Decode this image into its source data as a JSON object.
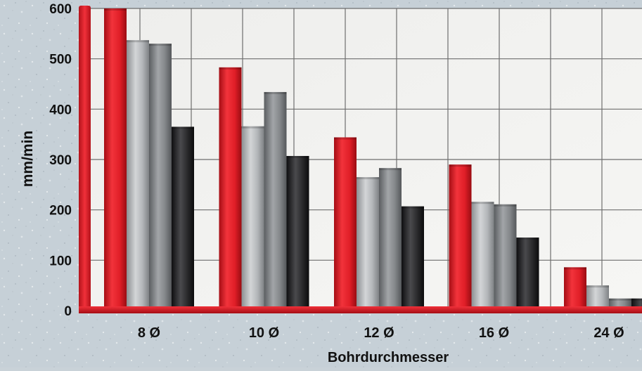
{
  "chart_data": {
    "type": "bar",
    "title": "",
    "xlabel": "Bohrdurchmesser",
    "ylabel": "mm/min",
    "categories": [
      "8 Ø",
      "10 Ø",
      "12 Ø",
      "16 Ø",
      "24 Ø"
    ],
    "series": [
      {
        "color": "#e3202a",
        "values": [
          605,
          483,
          344,
          290,
          86
        ]
      },
      {
        "color": "#b4b7ba",
        "values": [
          537,
          366,
          265,
          216,
          50
        ]
      },
      {
        "color": "#85888b",
        "values": [
          530,
          434,
          283,
          211,
          24
        ]
      },
      {
        "color": "#2a2a2c",
        "values": [
          365,
          307,
          207,
          145,
          24
        ]
      }
    ],
    "ylim": [
      0,
      600
    ],
    "yticks": [
      0,
      100,
      200,
      300,
      400,
      500,
      600
    ],
    "grid": true,
    "axis_color": "#e3202a"
  }
}
